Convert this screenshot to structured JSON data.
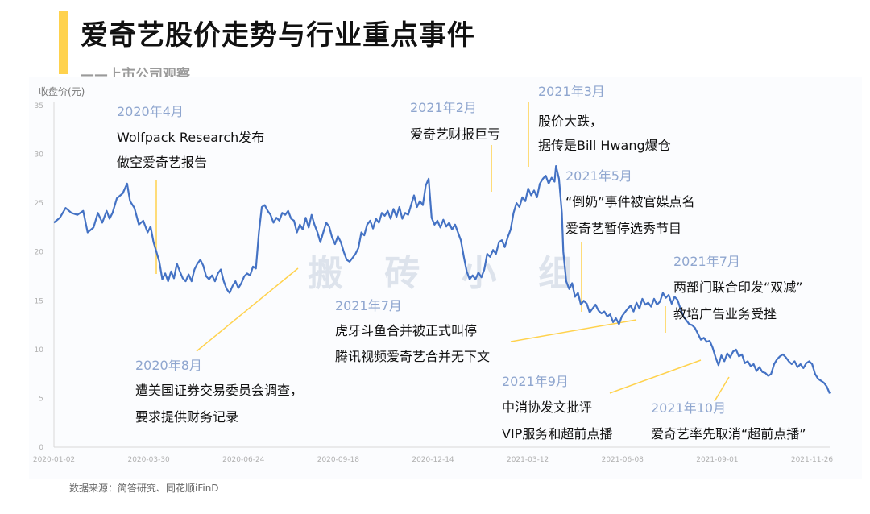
{
  "header": {
    "title": "爱奇艺股价走势与行业重点事件",
    "subtitle": "——上市公司观察",
    "accent_color": "#ffd24d"
  },
  "source_note": "数据来源：简答研究、同花顺iFinD",
  "watermark": "搬 砖 小 组",
  "chart_data": {
    "type": "line",
    "ylabel": "收盘价(元)",
    "ylim": [
      0,
      35
    ],
    "yticks": [
      0,
      5,
      10,
      15,
      20,
      25,
      30,
      35
    ],
    "x_tick_labels": [
      "2020-01-02",
      "2020-03-30",
      "2020-06-24",
      "2020-09-18",
      "2020-12-14",
      "2021-03-12",
      "2021-06-08",
      "2021-09-01",
      "2021-11-26"
    ],
    "line_color": "#4472c4",
    "x_count": 480,
    "series": [
      {
        "values": [
          [
            0,
            23
          ],
          [
            4,
            23.5
          ],
          [
            8,
            24.5
          ],
          [
            12,
            24
          ],
          [
            16,
            23.8
          ],
          [
            20,
            24.2
          ],
          [
            23,
            22
          ],
          [
            27,
            22.5
          ],
          [
            30,
            24
          ],
          [
            33,
            23
          ],
          [
            36,
            24.2
          ],
          [
            38,
            23.4
          ],
          [
            40,
            24
          ],
          [
            43,
            25.5
          ],
          [
            47,
            26
          ],
          [
            50,
            27
          ],
          [
            52,
            25.2
          ],
          [
            55,
            24.5
          ],
          [
            58,
            22.8
          ],
          [
            61,
            23.2
          ],
          [
            64,
            22
          ],
          [
            66,
            22.6
          ],
          [
            68,
            21
          ],
          [
            70,
            20
          ],
          [
            72,
            19
          ],
          [
            74,
            17.2
          ],
          [
            76,
            17.8
          ],
          [
            78,
            17
          ],
          [
            80,
            18
          ],
          [
            82,
            17.3
          ],
          [
            84,
            18.8
          ],
          [
            86,
            18
          ],
          [
            88,
            17.3
          ],
          [
            90,
            17
          ],
          [
            92,
            17.7
          ],
          [
            94,
            17
          ],
          [
            96,
            18.2
          ],
          [
            98,
            18.8
          ],
          [
            100,
            19.2
          ],
          [
            102,
            18.6
          ],
          [
            104,
            17.5
          ],
          [
            106,
            17.2
          ],
          [
            108,
            17.6
          ],
          [
            110,
            17
          ],
          [
            112,
            17.8
          ],
          [
            114,
            18.2
          ],
          [
            116,
            17
          ],
          [
            118,
            16.2
          ],
          [
            120,
            15.8
          ],
          [
            122,
            16.5
          ],
          [
            124,
            17
          ],
          [
            126,
            16.3
          ],
          [
            128,
            16.8
          ],
          [
            130,
            17.5
          ],
          [
            132,
            17.8
          ],
          [
            134,
            17.6
          ],
          [
            136,
            18.5
          ],
          [
            138,
            18.3
          ],
          [
            140,
            22
          ],
          [
            142,
            24.6
          ],
          [
            144,
            24.8
          ],
          [
            146,
            24.2
          ],
          [
            148,
            23.8
          ],
          [
            150,
            23
          ],
          [
            152,
            23.5
          ],
          [
            154,
            23.2
          ],
          [
            156,
            24
          ],
          [
            158,
            23.8
          ],
          [
            160,
            24.2
          ],
          [
            162,
            23.4
          ],
          [
            164,
            23.2
          ],
          [
            166,
            22
          ],
          [
            168,
            22.8
          ],
          [
            170,
            22.3
          ],
          [
            172,
            23.5
          ],
          [
            174,
            22.5
          ],
          [
            176,
            23.8
          ],
          [
            178,
            22.8
          ],
          [
            180,
            22
          ],
          [
            182,
            21
          ],
          [
            184,
            22
          ],
          [
            186,
            23
          ],
          [
            188,
            22.6
          ],
          [
            190,
            21.5
          ],
          [
            192,
            20.8
          ],
          [
            194,
            21.6
          ],
          [
            196,
            21
          ],
          [
            198,
            20
          ],
          [
            200,
            19.2
          ],
          [
            202,
            19
          ],
          [
            204,
            19.4
          ],
          [
            206,
            19.8
          ],
          [
            208,
            20.4
          ],
          [
            210,
            22
          ],
          [
            212,
            21.7
          ],
          [
            214,
            22.8
          ],
          [
            216,
            23.2
          ],
          [
            218,
            22.4
          ],
          [
            220,
            23.4
          ],
          [
            222,
            23
          ],
          [
            224,
            24
          ],
          [
            226,
            23.7
          ],
          [
            228,
            24.2
          ],
          [
            230,
            23.4
          ],
          [
            232,
            24.4
          ],
          [
            234,
            23.6
          ],
          [
            236,
            24.6
          ],
          [
            238,
            23.4
          ],
          [
            240,
            24
          ],
          [
            242,
            23.8
          ],
          [
            244,
            24.8
          ],
          [
            246,
            25.8
          ],
          [
            248,
            24.6
          ],
          [
            250,
            25.2
          ],
          [
            252,
            24.8
          ],
          [
            254,
            26.8
          ],
          [
            256,
            27.5
          ],
          [
            258,
            23.5
          ],
          [
            260,
            22.8
          ],
          [
            262,
            23.2
          ],
          [
            264,
            22.5
          ],
          [
            266,
            23.3
          ],
          [
            268,
            22.6
          ],
          [
            270,
            23
          ],
          [
            272,
            22.3
          ],
          [
            274,
            22.8
          ],
          [
            276,
            22
          ],
          [
            278,
            21.2
          ],
          [
            280,
            19.5
          ],
          [
            282,
            18
          ],
          [
            284,
            17.2
          ],
          [
            286,
            17.6
          ],
          [
            288,
            17.2
          ],
          [
            290,
            17.9
          ],
          [
            292,
            17.4
          ],
          [
            294,
            18.2
          ],
          [
            296,
            19.8
          ],
          [
            298,
            19.5
          ],
          [
            300,
            20.2
          ],
          [
            302,
            19.8
          ],
          [
            304,
            21
          ],
          [
            306,
            21.2
          ],
          [
            308,
            20.5
          ],
          [
            310,
            21.5
          ],
          [
            312,
            22.3
          ],
          [
            314,
            24
          ],
          [
            316,
            25
          ],
          [
            318,
            24.6
          ],
          [
            320,
            25.6
          ],
          [
            322,
            25.2
          ],
          [
            324,
            26.5
          ],
          [
            326,
            25.8
          ],
          [
            328,
            26.3
          ],
          [
            330,
            25.6
          ],
          [
            332,
            27
          ],
          [
            334,
            27.5
          ],
          [
            336,
            27.8
          ],
          [
            338,
            27
          ],
          [
            340,
            27.6
          ],
          [
            342,
            27.2
          ],
          [
            343,
            28.8
          ],
          [
            345,
            27.5
          ],
          [
            347,
            24
          ],
          [
            348,
            20
          ],
          [
            350,
            17
          ],
          [
            352,
            16.2
          ],
          [
            354,
            16.8
          ],
          [
            356,
            15.4
          ],
          [
            358,
            15.8
          ],
          [
            360,
            14.6
          ],
          [
            362,
            15
          ],
          [
            364,
            14.7
          ],
          [
            366,
            13.8
          ],
          [
            368,
            14.2
          ],
          [
            370,
            14.6
          ],
          [
            372,
            14
          ],
          [
            374,
            13.7
          ],
          [
            376,
            13.9
          ],
          [
            378,
            13.4
          ],
          [
            380,
            13.6
          ],
          [
            382,
            12.8
          ],
          [
            384,
            13.2
          ],
          [
            386,
            12.6
          ],
          [
            388,
            13.4
          ],
          [
            390,
            13.8
          ],
          [
            392,
            14.2
          ],
          [
            394,
            14.5
          ],
          [
            396,
            13.9
          ],
          [
            398,
            14.8
          ],
          [
            400,
            14.2
          ],
          [
            402,
            15.2
          ],
          [
            404,
            14.6
          ],
          [
            406,
            14.8
          ],
          [
            408,
            14.4
          ],
          [
            410,
            15.2
          ],
          [
            412,
            14.6
          ],
          [
            414,
            14.9
          ],
          [
            416,
            15.8
          ],
          [
            418,
            15.3
          ],
          [
            420,
            15.6
          ],
          [
            422,
            14.7
          ],
          [
            424,
            15.4
          ],
          [
            426,
            15.1
          ],
          [
            428,
            14.2
          ],
          [
            430,
            13.4
          ],
          [
            432,
            13
          ],
          [
            434,
            12.6
          ],
          [
            436,
            12.5
          ],
          [
            438,
            12.2
          ],
          [
            440,
            11.6
          ],
          [
            442,
            11
          ],
          [
            444,
            11.2
          ],
          [
            446,
            10.8
          ],
          [
            448,
            10.9
          ],
          [
            450,
            10.2
          ],
          [
            452,
            9.2
          ],
          [
            454,
            8.4
          ],
          [
            456,
            9.4
          ],
          [
            458,
            8.8
          ],
          [
            460,
            9.6
          ],
          [
            462,
            9.2
          ],
          [
            464,
            9.8
          ],
          [
            466,
            10
          ],
          [
            468,
            9.3
          ],
          [
            470,
            9.5
          ],
          [
            472,
            8.6
          ],
          [
            474,
            8.8
          ],
          [
            476,
            8.3
          ],
          [
            478,
            8.5
          ],
          [
            480,
            7.8
          ],
          [
            482,
            8.2
          ],
          [
            484,
            7.7
          ],
          [
            486,
            7.6
          ],
          [
            488,
            7.3
          ],
          [
            490,
            7.5
          ],
          [
            492,
            8.5
          ],
          [
            494,
            9
          ],
          [
            496,
            9.3
          ],
          [
            498,
            9.5
          ],
          [
            500,
            9.2
          ],
          [
            502,
            8.8
          ],
          [
            504,
            8.5
          ],
          [
            506,
            8.8
          ],
          [
            508,
            8.2
          ],
          [
            510,
            8.5
          ],
          [
            512,
            8.1
          ],
          [
            514,
            8.6
          ],
          [
            516,
            8.8
          ],
          [
            518,
            8.5
          ],
          [
            520,
            7.5
          ],
          [
            522,
            7
          ],
          [
            524,
            6.8
          ],
          [
            526,
            6.6
          ],
          [
            528,
            6.2
          ],
          [
            530,
            5.5
          ]
        ]
      }
    ],
    "annotations": [
      {
        "date": "2020年4月",
        "lines": [
          "Wolfpack Research发布",
          "做空爱奇艺报告"
        ]
      },
      {
        "date": "2020年8月",
        "lines": [
          "遭美国证券交易委员会调查，",
          "要求提供财务记录"
        ]
      },
      {
        "date": "2021年2月",
        "lines": [
          "爱奇艺财报巨亏"
        ]
      },
      {
        "date": "2021年3月",
        "lines": [
          "股价大跌，",
          "据传是Bill Hwang爆仓"
        ]
      },
      {
        "date": "2021年5月",
        "lines": [
          "“倒奶”事件被官媒点名",
          "爱奇艺暂停选秀节目"
        ]
      },
      {
        "date": "2021年7月",
        "lines": [
          "虎牙斗鱼合并被正式叫停",
          "腾讯视频爱奇艺合并无下文"
        ]
      },
      {
        "date": "2021年7月",
        "lines": [
          "两部门联合印发“双减”",
          "教培广告业务受挫"
        ]
      },
      {
        "date": "2021年9月",
        "lines": [
          "中消协发文批评",
          "VIP服务和超前点播"
        ]
      },
      {
        "date": "2021年10月",
        "lines": [
          "爱奇艺率先取消“超前点播”"
        ]
      }
    ]
  }
}
